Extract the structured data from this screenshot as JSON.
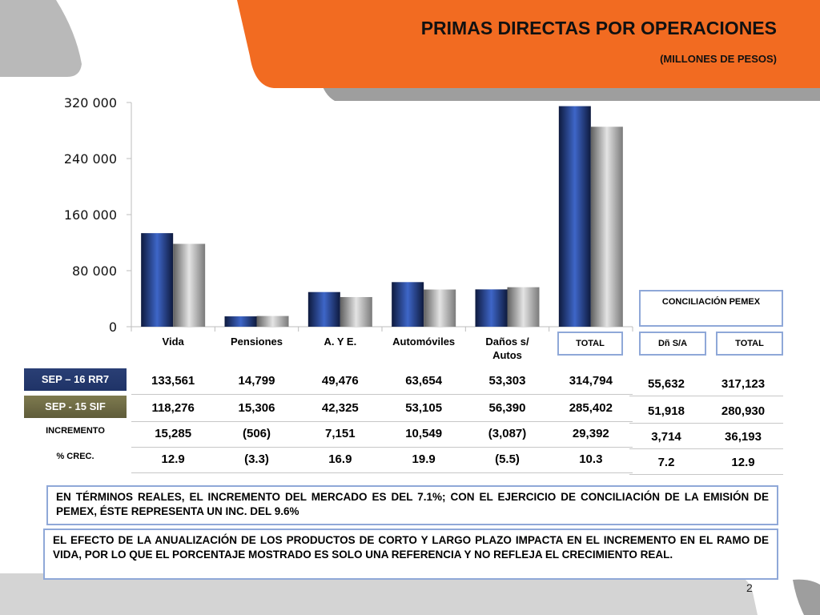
{
  "header": {
    "title": "PRIMAS DIRECTAS POR OPERACIONES",
    "subtitle": "(MILLONES DE PESOS)"
  },
  "colors": {
    "header_orange": "#f26b21",
    "series_current": "#2d4a9a",
    "series_prior": "#a7a7a7",
    "row_label_dark": "#233a70",
    "row_label_olive": "#6c6944",
    "box_border": "#8fa8d8"
  },
  "chart_data": {
    "type": "bar",
    "categories": [
      "Vida",
      "Pensiones",
      "A. Y E.",
      "Automóviles",
      "Daños s/ Autos",
      "TOTAL"
    ],
    "category_labels": [
      [
        "Vida"
      ],
      [
        "Pensiones"
      ],
      [
        "A. Y E."
      ],
      [
        "Automóviles"
      ],
      [
        "Daños s/",
        "Autos"
      ],
      [
        "TOTAL"
      ]
    ],
    "series": [
      {
        "name": "SEP – 16 RR7",
        "values": [
          133561,
          14799,
          49476,
          63654,
          53303,
          314794
        ]
      },
      {
        "name": "SEP -  15 SIF",
        "values": [
          118276,
          15306,
          42325,
          53105,
          56390,
          285402
        ]
      }
    ],
    "yticks": [
      "0",
      "80 000",
      "160 000",
      "240 000",
      "320 000"
    ],
    "ytick_values": [
      0,
      80000,
      160000,
      240000,
      320000
    ],
    "ylim": [
      0,
      320000
    ],
    "grid": false,
    "legend": "none"
  },
  "conciliacion": {
    "title": "CONCILIACIÓN PEMEX",
    "col1": "Dñ S/A",
    "col2": "TOTAL"
  },
  "table": {
    "rows": [
      {
        "label": "SEP – 16 RR7",
        "values": [
          "133,561",
          "14,799",
          "49,476",
          "63,654",
          "53,303",
          "314,794"
        ],
        "extra": [
          "55,632",
          "317,123"
        ]
      },
      {
        "label": "SEP -  15 SIF",
        "values": [
          "118,276",
          "15,306",
          "42,325",
          "53,105",
          "56,390",
          "285,402"
        ],
        "extra": [
          "51,918",
          "280,930"
        ]
      },
      {
        "label": "INCREMENTO",
        "values": [
          "15,285",
          "(506)",
          "7,151",
          "10,549",
          "(3,087)",
          "29,392"
        ],
        "extra": [
          "3,714",
          "36,193"
        ]
      },
      {
        "label": "% CREC.",
        "values": [
          "12.9",
          "(3.3)",
          "16.9",
          "19.9",
          "(5.5)",
          "10.3"
        ],
        "extra": [
          "7.2",
          "12.9"
        ]
      }
    ]
  },
  "notes": {
    "note1": "EN TÉRMINOS REALES, EL INCREMENTO DEL MERCADO ES DEL 7.1%;  CON EL EJERCICIO DE CONCILIACIÓN DE LA EMISIÓN DE PEMEX, ÉSTE REPRESENTA  UN INC. DEL 9.6%",
    "note2": "EL EFECTO DE LA ANUALIZACIÓN DE LOS PRODUCTOS DE CORTO Y LARGO PLAZO IMPACTA EN EL INCREMENTO EN EL RAMO DE VIDA, POR LO QUE EL PORCENTAJE MOSTRADO ES SOLO UNA REFERENCIA Y NO REFLEJA EL CRECIMIENTO REAL."
  },
  "page_number": "2"
}
